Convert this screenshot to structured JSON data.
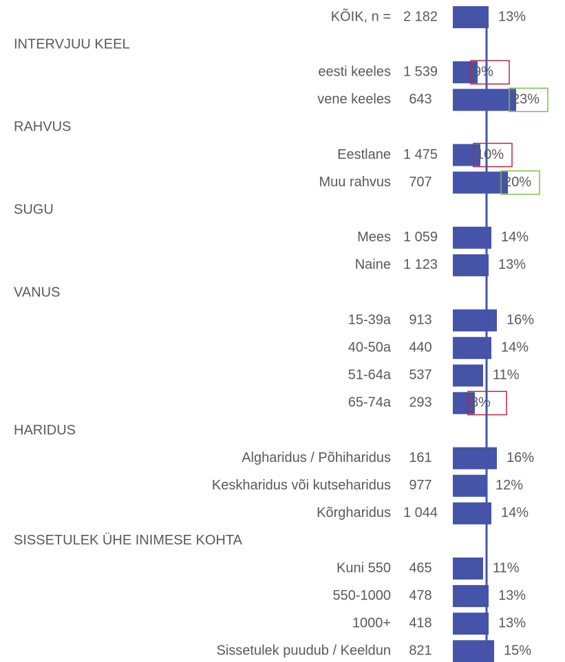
{
  "chart_data": {
    "type": "bar",
    "color": "#4553a8",
    "groups": [
      {
        "label": null,
        "categories": [
          "KÕIK, n ="
        ],
        "n": [
          "2 182"
        ],
        "values": [
          13
        ],
        "value_labels": [
          "13%"
        ],
        "box_colors": [
          null
        ]
      },
      {
        "label": "INTERVJUU KEEL",
        "categories": [
          "eesti keeles",
          "vene keeles"
        ],
        "n": [
          "1 539",
          "643"
        ],
        "values": [
          9,
          23
        ],
        "value_labels": [
          "9%",
          "23%"
        ],
        "box_colors": [
          "#c0253a",
          "#7cc04b"
        ]
      },
      {
        "label": "RAHVUS",
        "categories": [
          "Eestlane",
          "Muu rahvus"
        ],
        "n": [
          "1 475",
          "707"
        ],
        "values": [
          10,
          20
        ],
        "value_labels": [
          "10%",
          "20%"
        ],
        "box_colors": [
          "#c0253a",
          "#7cc04b"
        ]
      },
      {
        "label": "SUGU",
        "categories": [
          "Mees",
          "Naine"
        ],
        "n": [
          "1 059",
          "1 123"
        ],
        "values": [
          14,
          13
        ],
        "value_labels": [
          "14%",
          "13%"
        ],
        "box_colors": [
          null,
          null
        ]
      },
      {
        "label": "VANUS",
        "categories": [
          "15-39a",
          "40-50a",
          "51-64a",
          "65-74a"
        ],
        "n": [
          "913",
          "440",
          "537",
          "293"
        ],
        "values": [
          16,
          14,
          11,
          8
        ],
        "value_labels": [
          "16%",
          "14%",
          "11%",
          "8%"
        ],
        "box_colors": [
          null,
          null,
          null,
          "#c0253a"
        ]
      },
      {
        "label": "HARIDUS",
        "categories": [
          "Algharidus / Põhiharidus",
          "Keskharidus või kutseharidus",
          "Kõrgharidus"
        ],
        "n": [
          "161",
          "977",
          "1 044"
        ],
        "values": [
          16,
          12,
          14
        ],
        "value_labels": [
          "16%",
          "12%",
          "14%"
        ],
        "box_colors": [
          null,
          null,
          null
        ]
      },
      {
        "label": "SISSETULEK ÜHE INIMESE KOHTA",
        "categories": [
          "Kuni 550",
          "550-1000",
          "1000+",
          "Sissetulek puudub / Keeldun"
        ],
        "n": [
          "465",
          "478",
          "418",
          "821"
        ],
        "values": [
          11,
          13,
          13,
          15
        ],
        "value_labels": [
          "11%",
          "13%",
          "13%",
          "15%"
        ],
        "box_colors": [
          null,
          null,
          null,
          null
        ]
      }
    ]
  }
}
